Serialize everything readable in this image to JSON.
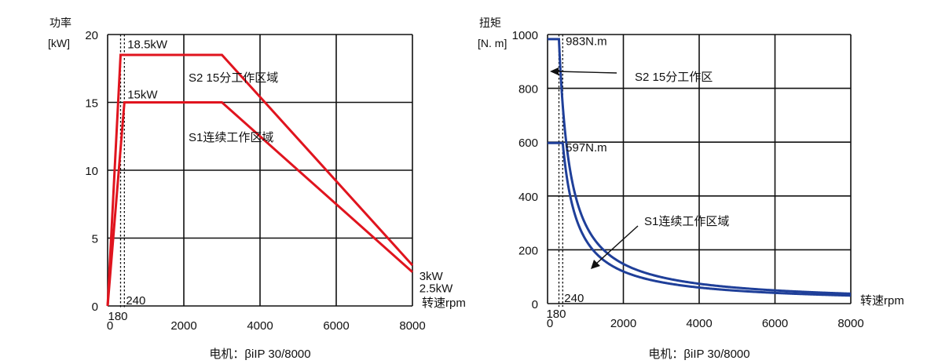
{
  "chart_data": [
    {
      "type": "line",
      "ylabel_lines": [
        "功率",
        "[kW]"
      ],
      "xlabel": "转速rpm",
      "caption": "电机：βiIP 30/8000",
      "xlim": [
        0,
        8000
      ],
      "ylim": [
        0,
        20
      ],
      "xticks": [
        0,
        2000,
        4000,
        6000,
        8000
      ],
      "yticks": [
        0,
        5,
        10,
        15,
        20
      ],
      "grid": true,
      "series": [
        {
          "name": "S2 15分工作区域",
          "color": "#e0141e",
          "x": [
            0,
            340,
            3000,
            8000
          ],
          "y": [
            0,
            18.5,
            18.5,
            3
          ]
        },
        {
          "name": "S1连续工作区域",
          "color": "#e0141e",
          "x": [
            0,
            440,
            3000,
            8000
          ],
          "y": [
            0,
            15,
            15,
            2.5
          ]
        }
      ],
      "vlines": [
        {
          "x": 340,
          "label": "180"
        },
        {
          "x": 440,
          "label": "240"
        }
      ],
      "annotations": [
        {
          "text": "18.5kW",
          "x": 520,
          "y": 19.0
        },
        {
          "text": "15kW",
          "x": 520,
          "y": 15.3
        },
        {
          "text": "3kW",
          "x": 8180,
          "y": 1.9
        },
        {
          "text": "2.5kW",
          "x": 8180,
          "y": 1.0
        }
      ]
    },
    {
      "type": "line",
      "ylabel_lines": [
        "扭矩",
        "[N. m]"
      ],
      "xlabel": "转速rpm",
      "caption": "电机：βiIP 30/8000",
      "xlim": [
        0,
        8000
      ],
      "ylim": [
        0,
        1000
      ],
      "xticks": [
        0,
        2000,
        4000,
        6000,
        8000
      ],
      "yticks": [
        0,
        200,
        400,
        600,
        800,
        1000
      ],
      "grid": true,
      "series": [
        {
          "name": "S2 15分工作区",
          "color": "#1f3f99",
          "constant": 983,
          "knee": 300
        },
        {
          "name": "S1连续工作区域",
          "color": "#1f3f99",
          "constant": 597,
          "knee": 400
        }
      ],
      "vlines": [
        {
          "x": 300,
          "label": "180"
        },
        {
          "x": 400,
          "label": "240"
        }
      ],
      "annotations": [
        {
          "text": "983N.m",
          "x": 480,
          "y": 960
        },
        {
          "text": "597N.m",
          "x": 480,
          "y": 565
        }
      ]
    }
  ]
}
